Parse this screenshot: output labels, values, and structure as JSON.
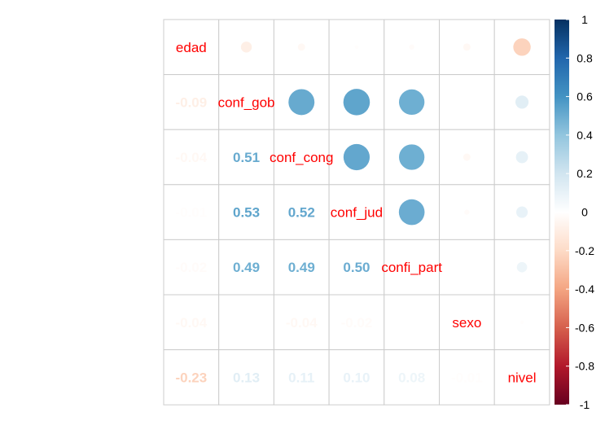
{
  "chart_data": {
    "type": "heatmap",
    "variables": [
      "edad",
      "conf_gob",
      "conf_cong",
      "conf_jud",
      "confi_part",
      "sexo",
      "nivel"
    ],
    "matrix": [
      [
        1.0,
        -0.09,
        -0.04,
        -0.01,
        -0.02,
        -0.04,
        -0.23
      ],
      [
        -0.09,
        1.0,
        0.51,
        0.53,
        0.49,
        0.0,
        0.13
      ],
      [
        -0.04,
        0.51,
        1.0,
        0.52,
        0.49,
        -0.04,
        0.11
      ],
      [
        -0.01,
        0.53,
        0.52,
        1.0,
        0.5,
        -0.02,
        0.1
      ],
      [
        -0.02,
        0.49,
        0.49,
        0.5,
        1.0,
        0.0,
        0.08
      ],
      [
        -0.04,
        0.0,
        -0.04,
        -0.02,
        0.0,
        1.0,
        -0.01
      ],
      [
        -0.23,
        0.13,
        0.11,
        0.1,
        0.08,
        -0.01,
        1.0
      ]
    ],
    "lower_labels": [
      [
        "-0.09"
      ],
      [
        "-0.04",
        "0.51"
      ],
      [
        "-0.01",
        "0.53",
        "0.52"
      ],
      [
        "-0.02",
        "0.49",
        "0.49",
        "0.50"
      ],
      [
        "-0.04",
        "0.00",
        "-0.04",
        "-0.02",
        "0.00"
      ],
      [
        "-0.23",
        "0.13",
        "0.11",
        "0.10",
        "0.08",
        "-0.01"
      ]
    ],
    "upper_method": "circle",
    "lower_method": "number",
    "colorbar": {
      "ticks": [
        "1",
        "0.8",
        "0.6",
        "0.4",
        "0.2",
        "0",
        "-0.2",
        "-0.4",
        "-0.6",
        "-0.8",
        "-1"
      ],
      "range": [
        -1,
        1
      ]
    },
    "palette": [
      "#67001F",
      "#B2182B",
      "#D6604D",
      "#F4A582",
      "#FDDBC7",
      "#FFFFFF",
      "#D1E5F0",
      "#92C5DE",
      "#4393C3",
      "#2166AC",
      "#053061"
    ],
    "label_color": "#FF0000",
    "grid_color": "#CCCCCC"
  }
}
